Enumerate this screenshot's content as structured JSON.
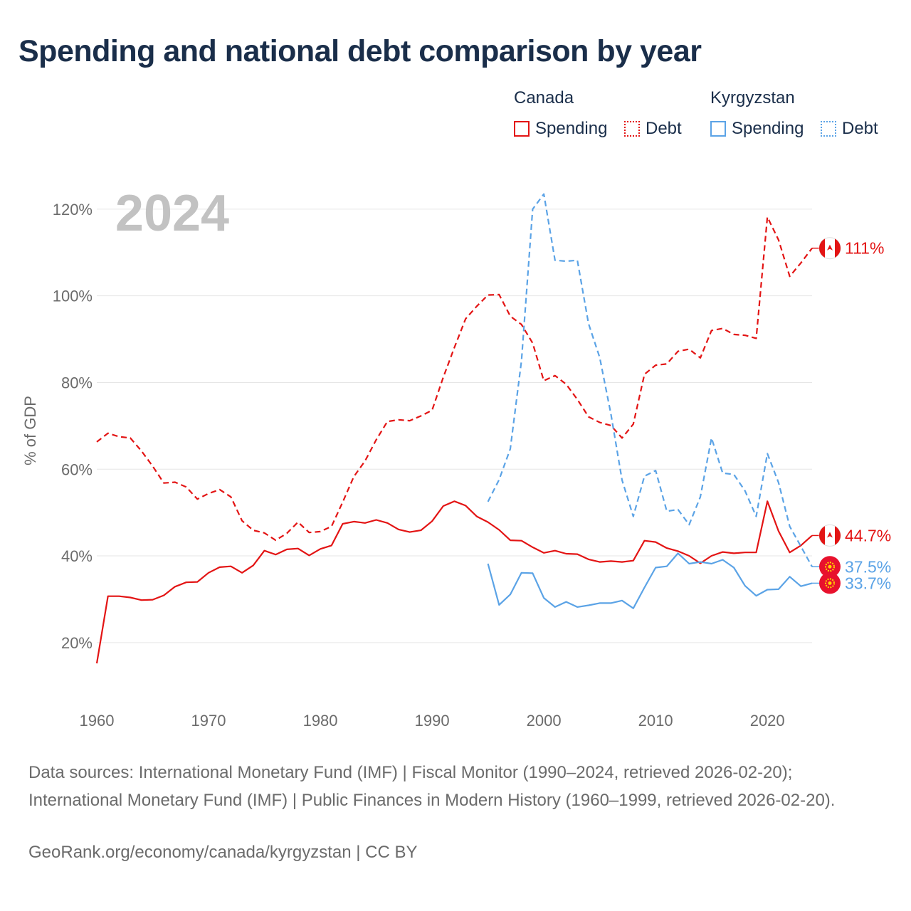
{
  "title": "Spending and national debt comparison by year",
  "legend": {
    "canada": {
      "name": "Canada",
      "spending": "Spending",
      "debt": "Debt"
    },
    "kyrgyzstan": {
      "name": "Kyrgyzstan",
      "spending": "Spending",
      "debt": "Debt"
    }
  },
  "colors": {
    "canada": "#e31414",
    "kyrgyzstan": "#5ba3e6",
    "grid": "#e6e6e6",
    "axis_text": "#6b6b6b",
    "year_label": "#c2c2c2"
  },
  "footer": {
    "sources": "Data sources: International Monetary Fund (IMF) | Fiscal Monitor (1990–2024, retrieved 2026-02-20); International Monetary Fund (IMF) | Public Finances in Modern History (1960–1999, retrieved 2026-02-20).",
    "credit": "GeoRank.org/economy/canada/kyrgyzstan | CC BY"
  },
  "chart_data": {
    "type": "line",
    "year_label": "2024",
    "ylabel": "% of GDP",
    "xlabel": "",
    "xlim": [
      1960,
      2024
    ],
    "ylim": [
      7,
      130
    ],
    "x_ticks": [
      1960,
      1970,
      1980,
      1990,
      2000,
      2010,
      2020
    ],
    "y_ticks": [
      20,
      40,
      60,
      80,
      100,
      120
    ],
    "y_tick_labels": [
      "20%",
      "40%",
      "60%",
      "80%",
      "100%",
      "120%"
    ],
    "series": [
      {
        "name": "Canada Debt",
        "country": "canada",
        "style": "dashed",
        "start_year": 1960,
        "end_label": "111%",
        "values": [
          66.3,
          68.3,
          67.5,
          67.2,
          64.2,
          60.7,
          56.8,
          57,
          55.9,
          53.1,
          54.4,
          55.3,
          53.6,
          48.1,
          45.9,
          45.3,
          43.6,
          45.2,
          47.8,
          45.4,
          45.6,
          46.8,
          52.4,
          58.3,
          61.9,
          66.8,
          71,
          71.4,
          71.2,
          72.3,
          73.6,
          81.2,
          88.1,
          94.7,
          97.6,
          100.2,
          100.3,
          95.3,
          93.4,
          89.1,
          80.4,
          81.6,
          79.6,
          76.1,
          72.1,
          70.8,
          70.1,
          67.2,
          70.4,
          81.9,
          84,
          84.3,
          87.2,
          87.7,
          85.7,
          92,
          92.5,
          91.1,
          90.9,
          90.2,
          118.2,
          112.9,
          104.5,
          107.6,
          111
        ]
      },
      {
        "name": "Canada Spending",
        "country": "canada",
        "style": "solid",
        "start_year": 1960,
        "end_label": "44.7%",
        "values": [
          15.2,
          30.7,
          30.7,
          30.4,
          29.8,
          29.9,
          30.9,
          32.9,
          33.9,
          34,
          36.1,
          37.4,
          37.6,
          36.1,
          37.8,
          41.2,
          40.3,
          41.5,
          41.7,
          40.1,
          41.6,
          42.4,
          47.4,
          47.9,
          47.6,
          48.3,
          47.6,
          46.1,
          45.5,
          45.9,
          48,
          51.5,
          52.6,
          51.6,
          49.1,
          47.8,
          46,
          43.6,
          43.5,
          42,
          40.7,
          41.2,
          40.5,
          40.4,
          39.2,
          38.6,
          38.8,
          38.6,
          38.9,
          43.5,
          43.2,
          41.8,
          41.1,
          40,
          38.3,
          40,
          40.9,
          40.6,
          40.8,
          40.8,
          52.6,
          45.7,
          40.8,
          42.4,
          44.7
        ]
      },
      {
        "name": "Kyrgyzstan Debt",
        "country": "kyrgyzstan",
        "style": "dashed",
        "start_year": 1995,
        "end_label": "37.5%",
        "values": [
          52.5,
          57.6,
          64.7,
          85,
          120,
          123.5,
          108.2,
          108,
          108.2,
          93.6,
          85.8,
          72.8,
          57.5,
          49.1,
          58.4,
          59.7,
          50.3,
          50.7,
          47.2,
          53.6,
          67.2,
          59.1,
          58.8,
          55,
          49.1,
          63.6,
          56.9,
          46.8,
          42.2,
          37.5
        ]
      },
      {
        "name": "Kyrgyzstan Spending",
        "country": "kyrgyzstan",
        "style": "solid",
        "start_year": 1995,
        "end_label": "33.7%",
        "values": [
          38.2,
          28.7,
          31.1,
          36.1,
          36,
          30.3,
          28.2,
          29.4,
          28.2,
          28.6,
          29.1,
          29.1,
          29.7,
          27.9,
          32.7,
          37.3,
          37.6,
          40.6,
          38.2,
          38.6,
          38.2,
          39.1,
          37.3,
          33.1,
          30.8,
          32.2,
          32.3,
          35.2,
          33,
          33.7
        ]
      }
    ]
  }
}
